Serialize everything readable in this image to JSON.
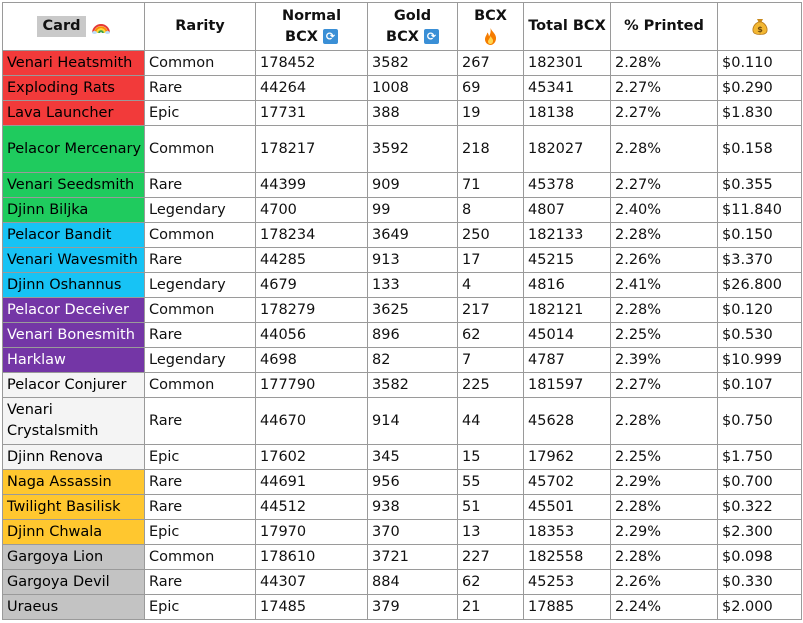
{
  "headers": {
    "card": "Card",
    "card_icon": "rainbow-icon",
    "rarity": "Rarity",
    "normal_line1": "Normal",
    "normal_line2": "BCX",
    "gold_line1": "Gold",
    "gold_line2": "BCX",
    "burn_line1": "BCX",
    "burn_icon": "fire-icon",
    "total": "Total BCX",
    "printed": "% Printed",
    "price_icon": "money-bag-icon",
    "sync_icon": "sync-icon"
  },
  "rows": [
    {
      "card": "Venari Heatsmith",
      "rarity": "Common",
      "normal": "178452",
      "gold": "3582",
      "burned": "267",
      "total": "182301",
      "printed": "2.28%",
      "price": "$0.110",
      "color": "#f23a3a"
    },
    {
      "card": "Exploding Rats",
      "rarity": "Rare",
      "normal": "44264",
      "gold": "1008",
      "burned": "69",
      "total": "45341",
      "printed": "2.27%",
      "price": "$0.290",
      "color": "#f23a3a"
    },
    {
      "card": "Lava Launcher",
      "rarity": "Epic",
      "normal": "17731",
      "gold": "388",
      "burned": "19",
      "total": "18138",
      "printed": "2.27%",
      "price": "$1.830",
      "color": "#f23a3a"
    },
    {
      "card": "Pelacor Mercenary",
      "rarity": "Common",
      "normal": "178217",
      "gold": "3592",
      "burned": "218",
      "total": "182027",
      "printed": "2.28%",
      "price": "$0.158",
      "color": "#1fcb5e",
      "tall": true
    },
    {
      "card": "Venari Seedsmith",
      "rarity": "Rare",
      "normal": "44399",
      "gold": "909",
      "burned": "71",
      "total": "45378",
      "printed": "2.27%",
      "price": "$0.355",
      "color": "#1fcb5e"
    },
    {
      "card": "Djinn Biljka",
      "rarity": "Legendary",
      "normal": "4700",
      "gold": "99",
      "burned": "8",
      "total": "4807",
      "printed": "2.40%",
      "price": "$11.840",
      "color": "#1fcb5e"
    },
    {
      "card": "Pelacor Bandit",
      "rarity": "Common",
      "normal": "178234",
      "gold": "3649",
      "burned": "250",
      "total": "182133",
      "printed": "2.28%",
      "price": "$0.150",
      "color": "#17c3f5"
    },
    {
      "card": "Venari Wavesmith",
      "rarity": "Rare",
      "normal": "44285",
      "gold": "913",
      "burned": "17",
      "total": "45215",
      "printed": "2.26%",
      "price": "$3.370",
      "color": "#17c3f5"
    },
    {
      "card": "Djinn Oshannus",
      "rarity": "Legendary",
      "normal": "4679",
      "gold": "133",
      "burned": "4",
      "total": "4816",
      "printed": "2.41%",
      "price": "$26.800",
      "color": "#17c3f5"
    },
    {
      "card": "Pelacor Deceiver",
      "rarity": "Common",
      "normal": "178279",
      "gold": "3625",
      "burned": "217",
      "total": "182121",
      "printed": "2.28%",
      "price": "$0.120",
      "color": "#7436a6",
      "light": true
    },
    {
      "card": "Venari Bonesmith",
      "rarity": "Rare",
      "normal": "44056",
      "gold": "896",
      "burned": "62",
      "total": "45014",
      "printed": "2.25%",
      "price": "$0.530",
      "color": "#7436a6",
      "light": true
    },
    {
      "card": "Harklaw",
      "rarity": "Legendary",
      "normal": "4698",
      "gold": "82",
      "burned": "7",
      "total": "4787",
      "printed": "2.39%",
      "price": "$10.999",
      "color": "#7436a6",
      "light": true
    },
    {
      "card": "Pelacor Conjurer",
      "rarity": "Common",
      "normal": "177790",
      "gold": "3582",
      "burned": "225",
      "total": "181597",
      "printed": "2.27%",
      "price": "$0.107",
      "color": "#f4f4f4"
    },
    {
      "card": "Venari Crystalsmith",
      "rarity": "Rare",
      "normal": "44670",
      "gold": "914",
      "burned": "44",
      "total": "45628",
      "printed": "2.28%",
      "price": "$0.750",
      "color": "#f4f4f4",
      "tall": true
    },
    {
      "card": "Djinn Renova",
      "rarity": "Epic",
      "normal": "17602",
      "gold": "345",
      "burned": "15",
      "total": "17962",
      "printed": "2.25%",
      "price": "$1.750",
      "color": "#f4f4f4"
    },
    {
      "card": "Naga Assassin",
      "rarity": "Rare",
      "normal": "44691",
      "gold": "956",
      "burned": "55",
      "total": "45702",
      "printed": "2.29%",
      "price": "$0.700",
      "color": "#ffc72f"
    },
    {
      "card": "Twilight Basilisk",
      "rarity": "Rare",
      "normal": "44512",
      "gold": "938",
      "burned": "51",
      "total": "45501",
      "printed": "2.28%",
      "price": "$0.322",
      "color": "#ffc72f"
    },
    {
      "card": "Djinn Chwala",
      "rarity": "Epic",
      "normal": "17970",
      "gold": "370",
      "burned": "13",
      "total": "18353",
      "printed": "2.29%",
      "price": "$2.300",
      "color": "#ffc72f"
    },
    {
      "card": "Gargoya Lion",
      "rarity": "Common",
      "normal": "178610",
      "gold": "3721",
      "burned": "227",
      "total": "182558",
      "printed": "2.28%",
      "price": "$0.098",
      "color": "#c3c3c3"
    },
    {
      "card": "Gargoya Devil",
      "rarity": "Rare",
      "normal": "44307",
      "gold": "884",
      "burned": "62",
      "total": "45253",
      "printed": "2.26%",
      "price": "$0.330",
      "color": "#c3c3c3"
    },
    {
      "card": "Uraeus",
      "rarity": "Epic",
      "normal": "17485",
      "gold": "379",
      "burned": "21",
      "total": "17885",
      "printed": "2.24%",
      "price": "$2.000",
      "color": "#c3c3c3"
    }
  ]
}
